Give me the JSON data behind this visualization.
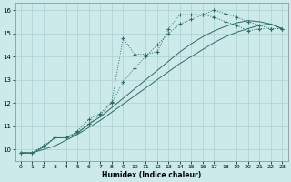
{
  "title": "",
  "xlabel": "Humidex (Indice chaleur)",
  "bg_color": "#cdeaea",
  "line_color": "#2e6b62",
  "grid_color": "#aacfcf",
  "xlim": [
    -0.5,
    23.5
  ],
  "ylim": [
    9.5,
    16.3
  ],
  "xticks": [
    0,
    1,
    2,
    3,
    4,
    5,
    6,
    7,
    8,
    9,
    10,
    11,
    12,
    13,
    14,
    15,
    16,
    17,
    18,
    19,
    20,
    21,
    22,
    23
  ],
  "yticks": [
    10,
    11,
    12,
    13,
    14,
    15,
    16
  ],
  "line1_x": [
    0,
    1,
    2,
    3,
    4,
    5,
    6,
    7,
    8,
    9,
    10,
    11,
    12,
    13,
    14,
    15,
    16,
    17,
    18,
    19,
    20,
    21,
    22,
    23
  ],
  "line1_y": [
    9.85,
    9.85,
    10.15,
    10.5,
    10.5,
    10.8,
    11.3,
    11.55,
    12.05,
    14.8,
    14.1,
    14.1,
    14.2,
    15.2,
    15.8,
    15.8,
    15.8,
    15.7,
    15.5,
    15.35,
    15.1,
    15.2,
    15.2,
    15.2
  ],
  "line2_x": [
    0,
    1,
    2,
    3,
    4,
    5,
    6,
    7,
    8,
    9,
    10,
    11,
    12,
    13,
    14,
    15,
    16,
    17,
    18,
    19,
    20,
    21,
    22,
    23
  ],
  "line2_y": [
    9.85,
    9.85,
    10.15,
    10.5,
    10.5,
    10.75,
    11.1,
    11.5,
    12.0,
    12.9,
    13.5,
    14.0,
    14.5,
    15.0,
    15.4,
    15.6,
    15.8,
    16.0,
    15.85,
    15.7,
    15.5,
    15.35,
    15.2,
    15.2
  ],
  "line3_x": [
    0,
    1,
    2,
    3,
    4,
    5,
    6,
    7,
    8,
    9,
    10,
    11,
    12,
    13,
    14,
    15,
    16,
    17,
    18,
    19,
    20,
    21,
    22,
    23
  ],
  "line3_y": [
    9.85,
    9.85,
    10.1,
    10.5,
    10.5,
    10.7,
    11.1,
    11.4,
    11.8,
    12.2,
    12.6,
    13.0,
    13.4,
    13.8,
    14.2,
    14.55,
    14.85,
    15.1,
    15.3,
    15.45,
    15.55,
    15.5,
    15.4,
    15.2
  ],
  "line4_x": [
    0,
    1,
    2,
    3,
    4,
    5,
    6,
    7,
    8,
    9,
    10,
    11,
    12,
    13,
    14,
    15,
    16,
    17,
    18,
    19,
    20,
    21,
    22,
    23
  ],
  "line4_y": [
    9.85,
    9.85,
    10.0,
    10.15,
    10.4,
    10.65,
    10.95,
    11.25,
    11.6,
    11.95,
    12.3,
    12.65,
    13.0,
    13.35,
    13.7,
    14.0,
    14.3,
    14.6,
    14.85,
    15.05,
    15.2,
    15.35,
    15.4,
    15.2
  ]
}
